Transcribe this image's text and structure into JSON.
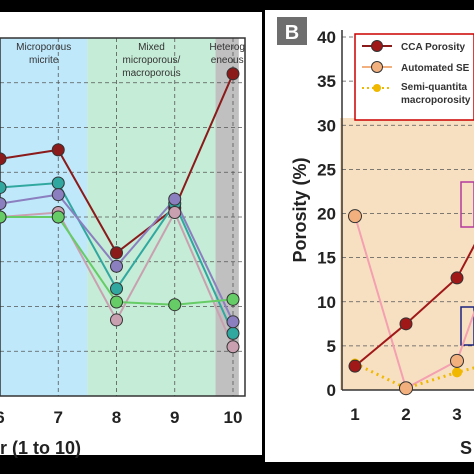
{
  "chart_data": [
    {
      "type": "line",
      "panel": "A",
      "xlabel": "r (1 to 10)",
      "x_ticks": [
        "6",
        "7",
        "8",
        "9",
        "10"
      ],
      "zones": [
        {
          "label_lines": [
            "Microporous",
            "micrite"
          ],
          "color": "#bfe8fb",
          "x_from": 5.5,
          "x_to": 7.5
        },
        {
          "label_lines": [
            "Mixed",
            "microporous/",
            "macroporous"
          ],
          "color": "#c5ecd6",
          "x_from": 7.5,
          "x_to": 9.7
        },
        {
          "label_lines": [
            "Heterog",
            "eneous"
          ],
          "color": "#c0c0c0",
          "x_from": 9.7,
          "x_to": 10.1
        }
      ],
      "x": [
        6,
        7,
        8,
        9,
        10
      ],
      "ylim": [
        0,
        40
      ],
      "series": [
        {
          "color": "#8b1a1a",
          "values": [
            26.5,
            27.5,
            16,
            21,
            36
          ]
        },
        {
          "color": "#30a8a0",
          "values": [
            23.3,
            23.8,
            12,
            21.5,
            7
          ]
        },
        {
          "color": "#8b7fc0",
          "values": [
            21.5,
            22.5,
            14.5,
            22,
            8.3
          ]
        },
        {
          "color": "#c9a0b0",
          "values": [
            20,
            20.5,
            8.5,
            20.5,
            5.5
          ]
        },
        {
          "color": "#66cc66",
          "values": [
            20,
            20,
            10.5,
            10.2,
            10.8
          ]
        }
      ]
    },
    {
      "type": "line",
      "panel": "B",
      "badge": "B",
      "ylabel": "Porosity (%)",
      "xlabel": "S",
      "ylim": [
        0,
        40
      ],
      "y_ticks": [
        "0",
        "5",
        "10",
        "15",
        "20",
        "25",
        "30",
        "35",
        "40"
      ],
      "x_ticks": [
        "1",
        "2",
        "3"
      ],
      "legend": [
        "CCA Porosity",
        "Automated SE",
        "Semi-quantita",
        "macroporosity"
      ],
      "x": [
        1,
        2,
        3
      ],
      "series": [
        {
          "name": "CCA Porosity",
          "color": "#a01818",
          "values": [
            2.7,
            7.5,
            12.7
          ]
        },
        {
          "name": "Automated SE",
          "color": "#f3b07f",
          "values": [
            19.7,
            0.2,
            3.3
          ]
        },
        {
          "name": "Semi-quantita macroporosity",
          "color": "#f0b800",
          "values": [
            3,
            0.2,
            2
          ]
        }
      ]
    }
  ]
}
